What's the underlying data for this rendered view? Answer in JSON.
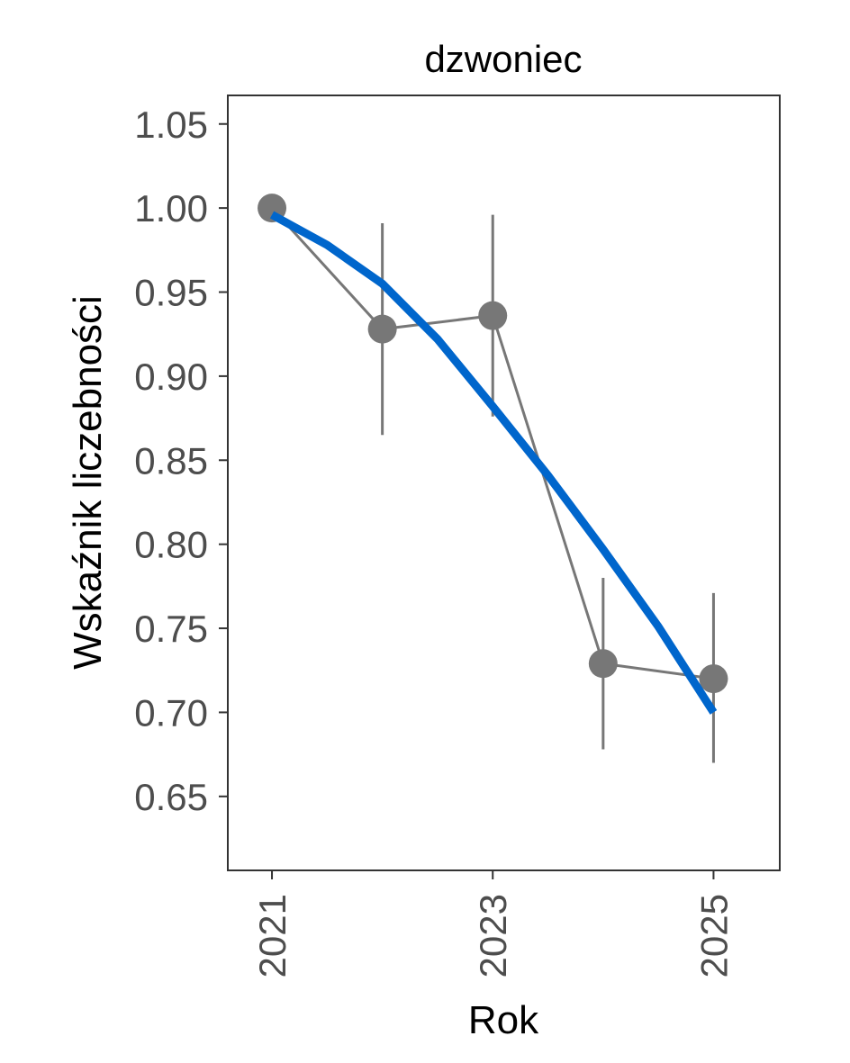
{
  "chart_data": {
    "type": "line",
    "title": "dzwoniec",
    "xlabel": "Rok",
    "ylabel": "Wskaźnik liczebności",
    "x_ticks": [
      "2021",
      "2023",
      "2025"
    ],
    "y_ticks": [
      "0.65",
      "0.70",
      "0.75",
      "0.80",
      "0.85",
      "0.90",
      "0.95",
      "1.00",
      "1.05"
    ],
    "xlim": [
      2020.6,
      2025.6
    ],
    "ylim": [
      0.606,
      1.067
    ],
    "grid": false,
    "legend": "none",
    "series": [
      {
        "x": [
          2021,
          2022,
          2023,
          2024,
          2025
        ],
        "y": [
          1.0,
          0.928,
          0.936,
          0.729,
          0.72
        ],
        "lower": [
          1.0,
          0.865,
          0.876,
          0.678,
          0.67
        ],
        "upper": [
          1.0,
          0.991,
          0.996,
          0.78,
          0.771
        ],
        "color": "#777777"
      }
    ],
    "trend": {
      "x": [
        2021,
        2021.5,
        2022,
        2022.5,
        2023,
        2023.5,
        2024,
        2024.5,
        2025
      ],
      "y": [
        0.996,
        0.978,
        0.955,
        0.922,
        0.882,
        0.841,
        0.797,
        0.751,
        0.7
      ],
      "color": "#0066cc"
    }
  }
}
